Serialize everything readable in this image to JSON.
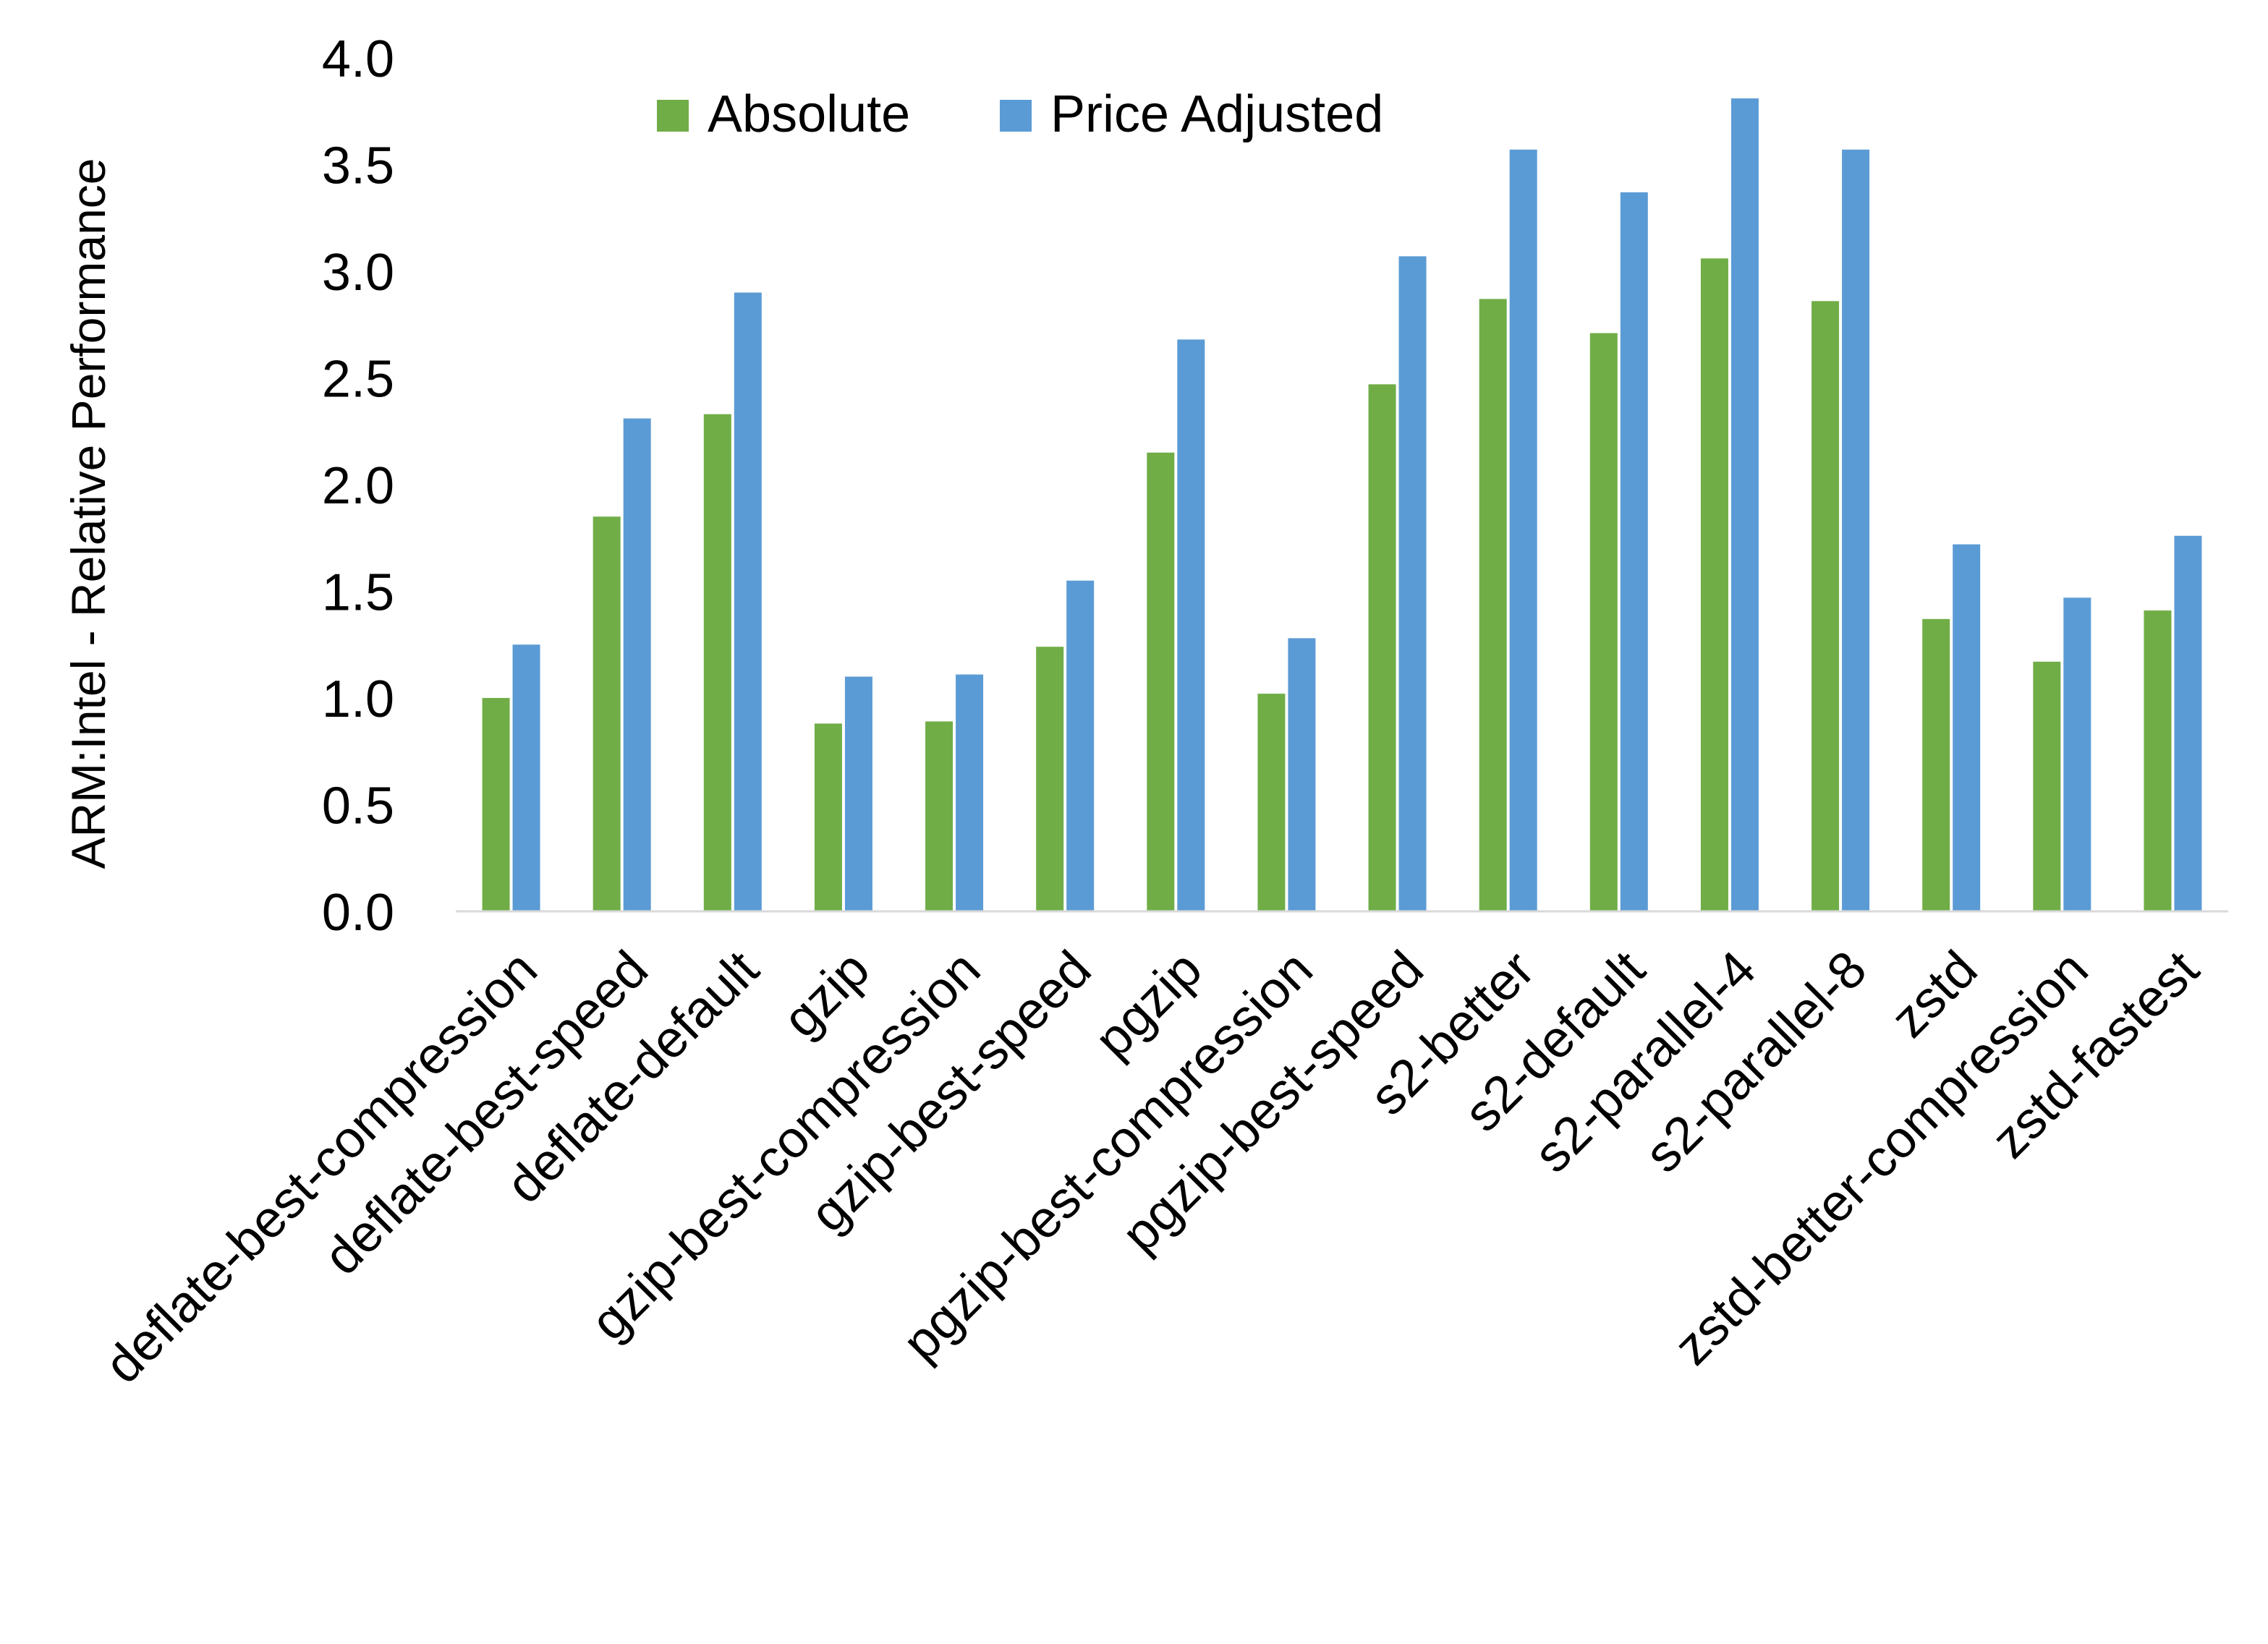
{
  "chart_data": {
    "type": "bar",
    "title": "",
    "xlabel": "",
    "ylabel": "ARM:Intel - Relative Performance",
    "ylim": [
      0,
      4.0
    ],
    "yticks": [
      "0.0",
      "0.5",
      "1.0",
      "1.5",
      "2.0",
      "2.5",
      "3.0",
      "3.5",
      "4.0"
    ],
    "grid": false,
    "legend_position": "top",
    "categories": [
      "deflate-best-compression",
      "deflate-best-speed",
      "deflate-default",
      "gzip",
      "gzip-best-compression",
      "gzip-best-speed",
      "pgzip",
      "pgzip-best-compression",
      "pgzip-best-speed",
      "s2-better",
      "s2-default",
      "s2-parallel-4",
      "s2-parallel-8",
      "zstd",
      "zstd-better-compression",
      "zstd-fastest"
    ],
    "series": [
      {
        "name": "Absolute",
        "color": "#70AD47",
        "values": [
          1.0,
          1.85,
          2.33,
          0.88,
          0.89,
          1.24,
          2.15,
          1.02,
          2.47,
          2.87,
          2.71,
          3.06,
          2.86,
          1.37,
          1.17,
          1.41
        ]
      },
      {
        "name": "Price Adjusted",
        "color": "#5B9BD5",
        "values": [
          1.25,
          2.31,
          2.9,
          1.1,
          1.11,
          1.55,
          2.68,
          1.28,
          3.07,
          3.57,
          3.37,
          3.81,
          3.57,
          1.72,
          1.47,
          1.76
        ]
      }
    ]
  }
}
